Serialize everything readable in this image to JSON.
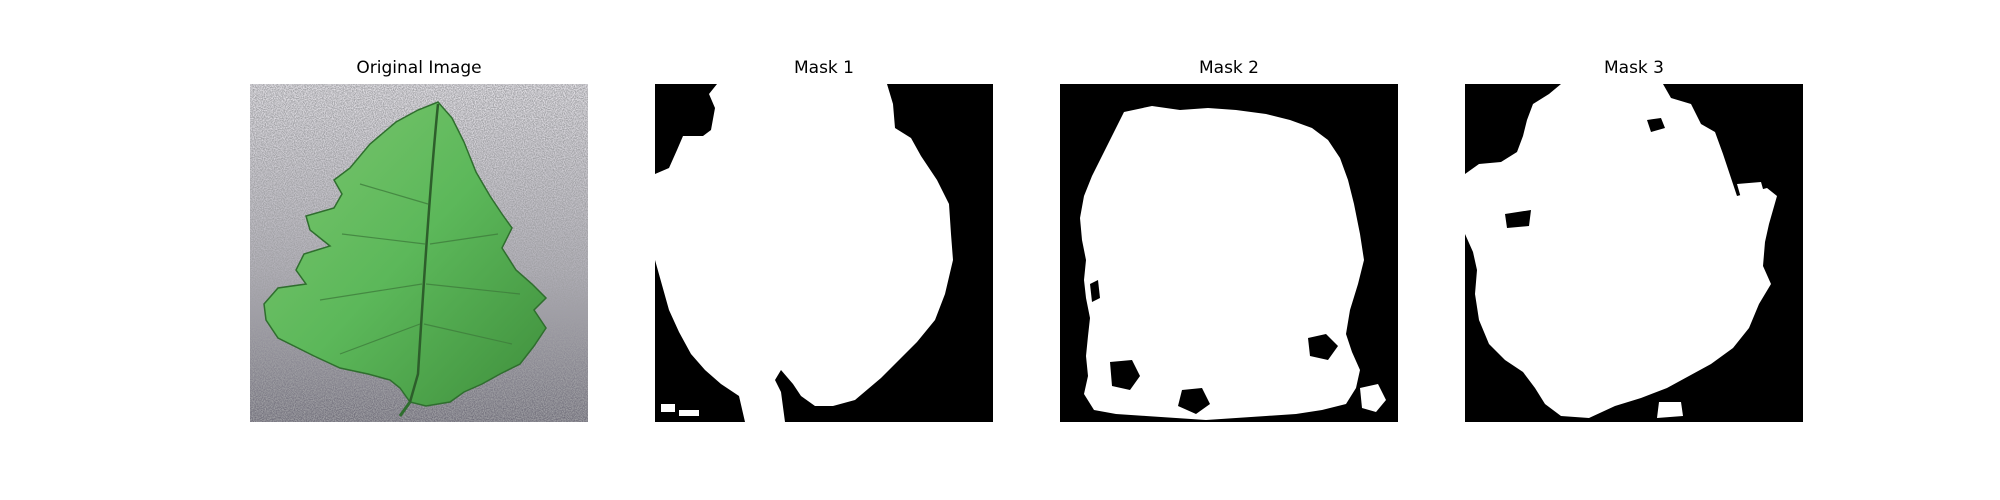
{
  "figure": {
    "panels": [
      {
        "title": "Original Image",
        "kind": "leaf-photo"
      },
      {
        "title": "Mask 1",
        "kind": "mask"
      },
      {
        "title": "Mask 2",
        "kind": "mask"
      },
      {
        "title": "Mask 3",
        "kind": "mask"
      }
    ],
    "colors": {
      "mask_foreground": "#ffffff",
      "mask_background": "#000000",
      "leaf": "#5cb85a",
      "leaf_dark": "#3f8f3c",
      "photo_background": "#b9b7be"
    }
  }
}
